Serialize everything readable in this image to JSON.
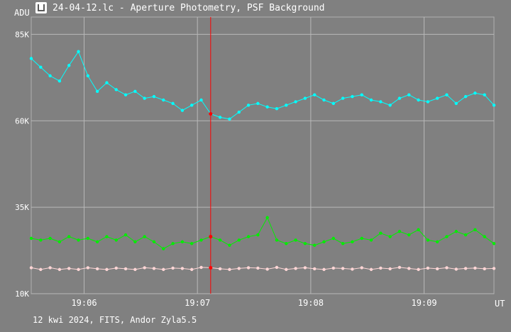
{
  "window": {
    "title": "24-04-12.lc - Aperture Photometry, PSF Background",
    "icon": "lightcurve-app-icon"
  },
  "footer": {
    "info": "12 kwi 2024, FITS, Andor Zyla5.5"
  },
  "chart_data": {
    "type": "line",
    "ylabel": "ADU",
    "xlabel": "UT",
    "yticks": [
      {
        "value": 10000,
        "label": "10K"
      },
      {
        "value": 35000,
        "label": "35K"
      },
      {
        "value": 60000,
        "label": "60K"
      },
      {
        "value": 85000,
        "label": "85K"
      }
    ],
    "xticks": [
      {
        "value": "19:06",
        "label": "19:06"
      },
      {
        "value": "19:07",
        "label": "19:07"
      },
      {
        "value": "19:08",
        "label": "19:08"
      },
      {
        "value": "19:09",
        "label": "19:09"
      }
    ],
    "xlim": [
      "19:05:32",
      "19:09:37"
    ],
    "ylim": [
      10000,
      90000
    ],
    "grid": true,
    "cursor": {
      "x": "19:07:07"
    },
    "series": [
      {
        "color": "#00ffff",
        "points": [
          [
            "19:05:32",
            78000
          ],
          [
            "19:05:37",
            75500
          ],
          [
            "19:05:42",
            73000
          ],
          [
            "19:05:47",
            71500
          ],
          [
            "19:05:52",
            76000
          ],
          [
            "19:05:57",
            80000
          ],
          [
            "19:06:02",
            73000
          ],
          [
            "19:06:07",
            68500
          ],
          [
            "19:06:12",
            71000
          ],
          [
            "19:06:17",
            69000
          ],
          [
            "19:06:22",
            67500
          ],
          [
            "19:06:27",
            68500
          ],
          [
            "19:06:32",
            66500
          ],
          [
            "19:06:37",
            67000
          ],
          [
            "19:06:42",
            66000
          ],
          [
            "19:06:47",
            65000
          ],
          [
            "19:06:52",
            63000
          ],
          [
            "19:06:57",
            64500
          ],
          [
            "19:07:02",
            66000
          ],
          [
            "19:07:07",
            62000
          ],
          [
            "19:07:12",
            61000
          ],
          [
            "19:07:17",
            60500
          ],
          [
            "19:07:22",
            62500
          ],
          [
            "19:07:27",
            64500
          ],
          [
            "19:07:32",
            65000
          ],
          [
            "19:07:37",
            64000
          ],
          [
            "19:07:42",
            63500
          ],
          [
            "19:07:47",
            64500
          ],
          [
            "19:07:52",
            65500
          ],
          [
            "19:07:57",
            66500
          ],
          [
            "19:08:02",
            67500
          ],
          [
            "19:08:07",
            66000
          ],
          [
            "19:08:12",
            65000
          ],
          [
            "19:08:17",
            66500
          ],
          [
            "19:08:22",
            67000
          ],
          [
            "19:08:27",
            67500
          ],
          [
            "19:08:32",
            66000
          ],
          [
            "19:08:37",
            65500
          ],
          [
            "19:08:42",
            64500
          ],
          [
            "19:08:47",
            66500
          ],
          [
            "19:08:52",
            67500
          ],
          [
            "19:08:57",
            66000
          ],
          [
            "19:09:02",
            65500
          ],
          [
            "19:09:07",
            66500
          ],
          [
            "19:09:12",
            67500
          ],
          [
            "19:09:17",
            65000
          ],
          [
            "19:09:22",
            67000
          ],
          [
            "19:09:27",
            68000
          ],
          [
            "19:09:32",
            67500
          ],
          [
            "19:09:37",
            64500
          ]
        ]
      },
      {
        "color": "#00ee00",
        "points": [
          [
            "19:05:32",
            26000
          ],
          [
            "19:05:37",
            25500
          ],
          [
            "19:05:42",
            26000
          ],
          [
            "19:05:47",
            25000
          ],
          [
            "19:05:52",
            26500
          ],
          [
            "19:05:57",
            25500
          ],
          [
            "19:06:02",
            26000
          ],
          [
            "19:06:07",
            25000
          ],
          [
            "19:06:12",
            26500
          ],
          [
            "19:06:17",
            25500
          ],
          [
            "19:06:22",
            27000
          ],
          [
            "19:06:27",
            25000
          ],
          [
            "19:06:32",
            26500
          ],
          [
            "19:06:37",
            25000
          ],
          [
            "19:06:42",
            23000
          ],
          [
            "19:06:47",
            24500
          ],
          [
            "19:06:52",
            25000
          ],
          [
            "19:06:57",
            24500
          ],
          [
            "19:07:02",
            25500
          ],
          [
            "19:07:07",
            26500
          ],
          [
            "19:07:12",
            25500
          ],
          [
            "19:07:17",
            24000
          ],
          [
            "19:07:22",
            25500
          ],
          [
            "19:07:27",
            26500
          ],
          [
            "19:07:32",
            27000
          ],
          [
            "19:07:37",
            32000
          ],
          [
            "19:07:42",
            25500
          ],
          [
            "19:07:47",
            24500
          ],
          [
            "19:07:52",
            25500
          ],
          [
            "19:07:57",
            24500
          ],
          [
            "19:08:02",
            24000
          ],
          [
            "19:08:07",
            25000
          ],
          [
            "19:08:12",
            26000
          ],
          [
            "19:08:17",
            24500
          ],
          [
            "19:08:22",
            25000
          ],
          [
            "19:08:27",
            26000
          ],
          [
            "19:08:32",
            25500
          ],
          [
            "19:08:37",
            27500
          ],
          [
            "19:08:42",
            26500
          ],
          [
            "19:08:47",
            28000
          ],
          [
            "19:08:52",
            27000
          ],
          [
            "19:08:57",
            28500
          ],
          [
            "19:09:02",
            25500
          ],
          [
            "19:09:07",
            25000
          ],
          [
            "19:09:12",
            26500
          ],
          [
            "19:09:17",
            28000
          ],
          [
            "19:09:22",
            27000
          ],
          [
            "19:09:27",
            28500
          ],
          [
            "19:09:32",
            26500
          ],
          [
            "19:09:37",
            24500
          ]
        ]
      },
      {
        "color": "#ffd6d6",
        "points": [
          [
            "19:05:32",
            17500
          ],
          [
            "19:05:37",
            17000
          ],
          [
            "19:05:42",
            17500
          ],
          [
            "19:05:47",
            17000
          ],
          [
            "19:05:52",
            17300
          ],
          [
            "19:05:57",
            17000
          ],
          [
            "19:06:02",
            17500
          ],
          [
            "19:06:07",
            17200
          ],
          [
            "19:06:12",
            17000
          ],
          [
            "19:06:17",
            17400
          ],
          [
            "19:06:22",
            17200
          ],
          [
            "19:06:27",
            17000
          ],
          [
            "19:06:32",
            17500
          ],
          [
            "19:06:37",
            17300
          ],
          [
            "19:06:42",
            17000
          ],
          [
            "19:06:47",
            17400
          ],
          [
            "19:06:52",
            17300
          ],
          [
            "19:06:57",
            17000
          ],
          [
            "19:07:02",
            17600
          ],
          [
            "19:07:07",
            17500
          ],
          [
            "19:07:12",
            17200
          ],
          [
            "19:07:17",
            17000
          ],
          [
            "19:07:22",
            17300
          ],
          [
            "19:07:27",
            17500
          ],
          [
            "19:07:32",
            17400
          ],
          [
            "19:07:37",
            17100
          ],
          [
            "19:07:42",
            17600
          ],
          [
            "19:07:47",
            17000
          ],
          [
            "19:07:52",
            17300
          ],
          [
            "19:07:57",
            17500
          ],
          [
            "19:08:02",
            17200
          ],
          [
            "19:08:07",
            17000
          ],
          [
            "19:08:12",
            17400
          ],
          [
            "19:08:17",
            17300
          ],
          [
            "19:08:22",
            17100
          ],
          [
            "19:08:27",
            17500
          ],
          [
            "19:08:32",
            17000
          ],
          [
            "19:08:37",
            17400
          ],
          [
            "19:08:42",
            17200
          ],
          [
            "19:08:47",
            17600
          ],
          [
            "19:08:52",
            17300
          ],
          [
            "19:08:57",
            17000
          ],
          [
            "19:09:02",
            17400
          ],
          [
            "19:09:07",
            17200
          ],
          [
            "19:09:12",
            17500
          ],
          [
            "19:09:17",
            17100
          ],
          [
            "19:09:22",
            17300
          ],
          [
            "19:09:27",
            17400
          ],
          [
            "19:09:32",
            17200
          ],
          [
            "19:09:37",
            17300
          ]
        ]
      }
    ]
  }
}
